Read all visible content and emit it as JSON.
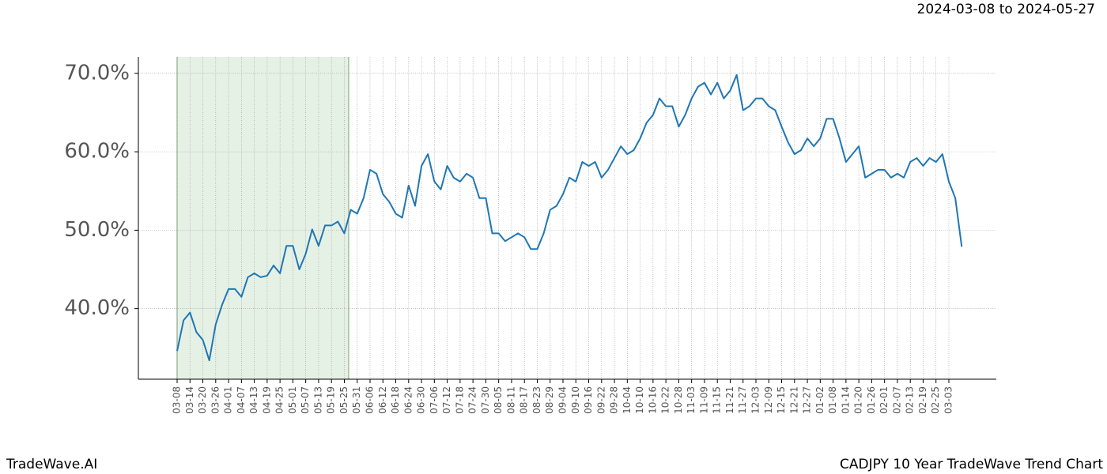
{
  "chart_data": {
    "type": "line",
    "title": "2024-03-08 to 2024-05-27",
    "footer_left": "TradeWave.AI",
    "footer_right": "CADJPY 10 Year TradeWave Trend Chart",
    "categories": [
      "03-08",
      null,
      "03-14",
      null,
      "03-20",
      null,
      "03-26",
      null,
      "04-01",
      null,
      "04-07",
      null,
      "04-13",
      null,
      "04-19",
      null,
      "04-25",
      null,
      "05-01",
      null,
      "05-07",
      null,
      "05-13",
      null,
      "05-19",
      null,
      "05-25",
      null,
      "05-31",
      null,
      "06-06",
      null,
      "06-12",
      null,
      "06-18",
      null,
      "06-24",
      null,
      "06-30",
      null,
      "07-06",
      null,
      "07-12",
      null,
      "07-18",
      null,
      "07-24",
      null,
      "07-30",
      null,
      "08-05",
      null,
      "08-11",
      null,
      "08-17",
      null,
      "08-23",
      null,
      "08-29",
      null,
      "09-04",
      null,
      "09-10",
      null,
      "09-16",
      null,
      "09-22",
      null,
      "09-28",
      null,
      "10-04",
      null,
      "10-10",
      null,
      "10-16",
      null,
      "10-22",
      null,
      "10-28",
      null,
      "11-03",
      null,
      "11-09",
      null,
      "11-15",
      null,
      "11-21",
      null,
      "11-27",
      null,
      "12-03",
      null,
      "12-09",
      null,
      "12-15",
      null,
      "12-21",
      null,
      "12-27",
      null,
      "01-02",
      null,
      "01-08",
      null,
      "01-14",
      null,
      "01-20",
      null,
      "01-26",
      null,
      "02-01",
      null,
      "02-07",
      null,
      "02-13",
      null,
      "02-19",
      null,
      "02-25",
      null,
      "03-03",
      null,
      null
    ],
    "series": [
      {
        "name": "CADJPY",
        "color": "#1f77b4",
        "values": [
          34.6,
          38.5,
          39.5,
          37.0,
          36.0,
          33.4,
          38.0,
          40.5,
          42.5,
          42.5,
          41.5,
          44.0,
          44.5,
          44.0,
          44.2,
          45.5,
          44.5,
          48.0,
          48.0,
          45.0,
          47.0,
          50.1,
          48.0,
          50.6,
          50.6,
          51.1,
          49.6,
          52.6,
          52.1,
          54.1,
          57.7,
          57.2,
          54.6,
          53.6,
          52.1,
          51.6,
          55.7,
          53.1,
          58.2,
          59.7,
          56.2,
          55.2,
          58.2,
          56.7,
          56.2,
          57.2,
          56.7,
          54.1,
          54.1,
          49.6,
          49.6,
          48.6,
          49.1,
          49.6,
          49.1,
          47.6,
          47.6,
          49.6,
          52.6,
          53.1,
          54.6,
          56.7,
          56.2,
          58.7,
          58.2,
          58.7,
          56.7,
          57.7,
          59.2,
          60.7,
          59.7,
          60.2,
          61.7,
          63.7,
          64.7,
          66.8,
          65.8,
          65.8,
          63.2,
          64.7,
          66.8,
          68.3,
          68.8,
          67.3,
          68.8,
          66.8,
          67.8,
          69.8,
          65.3,
          65.8,
          66.8,
          66.8,
          65.8,
          65.3,
          63.2,
          61.2,
          59.7,
          60.2,
          61.7,
          60.7,
          61.7,
          64.2,
          64.2,
          61.7,
          58.7,
          59.7,
          60.7,
          56.7,
          57.2,
          57.7,
          57.7,
          56.7,
          57.2,
          56.7,
          58.7,
          59.2,
          58.2,
          59.2,
          58.7,
          59.7,
          56.2,
          54.1,
          47.9
        ]
      }
    ],
    "ylim": [
      31.0,
      72.1
    ],
    "yticks": [
      {
        "value": 40,
        "label": "40.0%"
      },
      {
        "value": 50,
        "label": "50.0%"
      },
      {
        "value": 60,
        "label": "60.0%"
      },
      {
        "value": 70,
        "label": "70.0%"
      }
    ],
    "grid": true
  }
}
